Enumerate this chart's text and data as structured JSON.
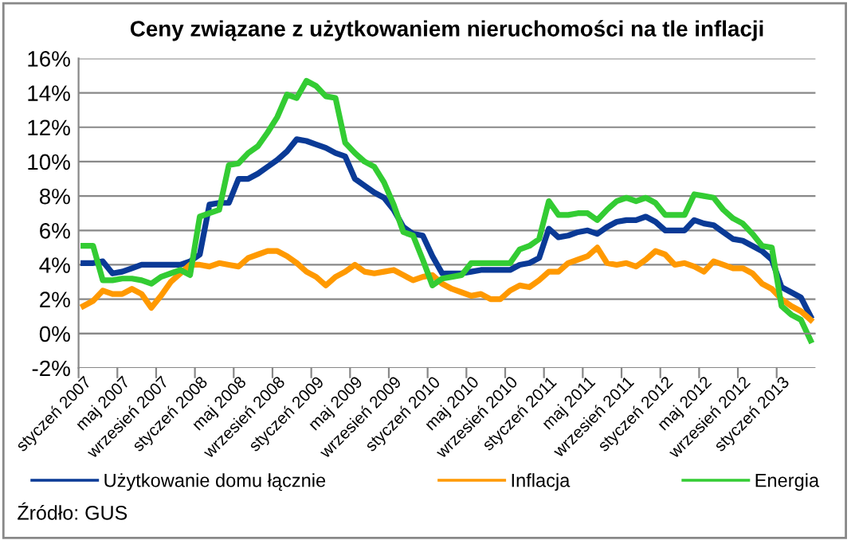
{
  "chart_data": {
    "type": "line",
    "title": "Ceny związane z użytkowaniem nieruchomości na tle inflacji",
    "categories": [
      "styczeń 2007",
      null,
      null,
      null,
      "maj 2007",
      null,
      null,
      null,
      "wrzesień 2007",
      null,
      null,
      null,
      "styczeń 2008",
      null,
      null,
      null,
      "maj 2008",
      null,
      null,
      null,
      "wrzesień 2008",
      null,
      null,
      null,
      "styczeń 2009",
      null,
      null,
      null,
      "maj 2009",
      null,
      null,
      null,
      "wrzesień 2009",
      null,
      null,
      null,
      "styczeń 2010",
      null,
      null,
      null,
      "maj 2010",
      null,
      null,
      null,
      "wrzesień 2010",
      null,
      null,
      null,
      "styczeń 2011",
      null,
      null,
      null,
      "maj 2011",
      null,
      null,
      null,
      "wrzesień 2011",
      null,
      null,
      null,
      "styczeń 2012",
      null,
      null,
      null,
      "maj 2012",
      null,
      null,
      null,
      "wrzesień 2012",
      null,
      null,
      null,
      "styczeń 2013",
      null,
      null,
      null
    ],
    "series": [
      {
        "name": "Użytkowanie domu łącznie",
        "color": "#0a3a96",
        "values": [
          4.1,
          4.1,
          4.2,
          3.5,
          3.6,
          3.8,
          4.0,
          4.0,
          4.0,
          4.0,
          4.0,
          4.2,
          4.6,
          7.5,
          7.6,
          7.6,
          9.0,
          9.0,
          9.3,
          9.7,
          10.1,
          10.6,
          11.3,
          11.2,
          11.0,
          10.8,
          10.5,
          10.3,
          9.0,
          8.6,
          8.2,
          7.9,
          7.2,
          6.2,
          5.8,
          5.7,
          4.5,
          3.5,
          3.5,
          3.5,
          3.6,
          3.7,
          3.7,
          3.7,
          3.7,
          4.0,
          4.1,
          4.4,
          6.1,
          5.6,
          5.7,
          5.9,
          6.0,
          5.8,
          6.2,
          6.5,
          6.6,
          6.6,
          6.8,
          6.5,
          6.0,
          6.0,
          6.0,
          6.6,
          6.4,
          6.3,
          5.9,
          5.5,
          5.4,
          5.1,
          4.8,
          4.3,
          2.7,
          2.4,
          2.1,
          1.0
        ]
      },
      {
        "name": "Inflacja",
        "color": "#ff9900",
        "values": [
          1.6,
          1.9,
          2.5,
          2.3,
          2.3,
          2.6,
          2.3,
          1.5,
          2.2,
          3.0,
          3.5,
          4.0,
          4.0,
          3.9,
          4.1,
          4.0,
          3.9,
          4.4,
          4.6,
          4.8,
          4.8,
          4.5,
          4.1,
          3.6,
          3.3,
          2.8,
          3.3,
          3.6,
          4.0,
          3.6,
          3.5,
          3.6,
          3.7,
          3.4,
          3.1,
          3.3,
          3.4,
          2.9,
          2.6,
          2.4,
          2.2,
          2.3,
          2.0,
          2.0,
          2.5,
          2.8,
          2.7,
          3.1,
          3.6,
          3.6,
          4.1,
          4.3,
          4.5,
          5.0,
          4.1,
          4.0,
          4.1,
          3.9,
          4.3,
          4.8,
          4.6,
          4.0,
          4.1,
          3.9,
          3.6,
          4.2,
          4.0,
          3.8,
          3.8,
          3.5,
          2.9,
          2.6,
          2.0,
          1.6,
          1.3,
          0.8
        ]
      },
      {
        "name": "Energia",
        "color": "#33cc33",
        "values": [
          5.1,
          5.1,
          3.1,
          3.1,
          3.2,
          3.2,
          3.1,
          2.9,
          3.3,
          3.5,
          3.7,
          3.4,
          6.8,
          7.0,
          7.2,
          9.8,
          9.9,
          10.5,
          10.9,
          11.7,
          12.6,
          13.9,
          13.7,
          14.7,
          14.4,
          13.8,
          13.7,
          11.1,
          10.5,
          10.0,
          9.7,
          8.8,
          7.5,
          5.9,
          5.7,
          4.3,
          2.8,
          3.2,
          3.3,
          3.4,
          4.1,
          4.1,
          4.1,
          4.1,
          4.1,
          4.9,
          5.1,
          5.5,
          7.7,
          6.9,
          6.9,
          7.0,
          7.0,
          6.6,
          7.2,
          7.7,
          7.9,
          7.7,
          7.9,
          7.6,
          6.9,
          6.9,
          6.9,
          8.1,
          8.0,
          7.9,
          7.2,
          6.7,
          6.4,
          5.8,
          5.1,
          5.0,
          1.6,
          1.1,
          0.8,
          -0.4
        ]
      }
    ],
    "ylim": [
      -2,
      16
    ],
    "yticks": [
      {
        "value": -2,
        "label": "-2%"
      },
      {
        "value": 0,
        "label": "0%"
      },
      {
        "value": 2,
        "label": "2%"
      },
      {
        "value": 4,
        "label": "4%"
      },
      {
        "value": 6,
        "label": "6%"
      },
      {
        "value": 8,
        "label": "8%"
      },
      {
        "value": 10,
        "label": "10%"
      },
      {
        "value": 12,
        "label": "12%"
      },
      {
        "value": 14,
        "label": "14%"
      },
      {
        "value": 16,
        "label": "16%"
      }
    ],
    "grid": "y",
    "legend": "bottom",
    "line_style": "solid",
    "marker": "none",
    "annotations": [
      "Źródło: GUS"
    ]
  }
}
